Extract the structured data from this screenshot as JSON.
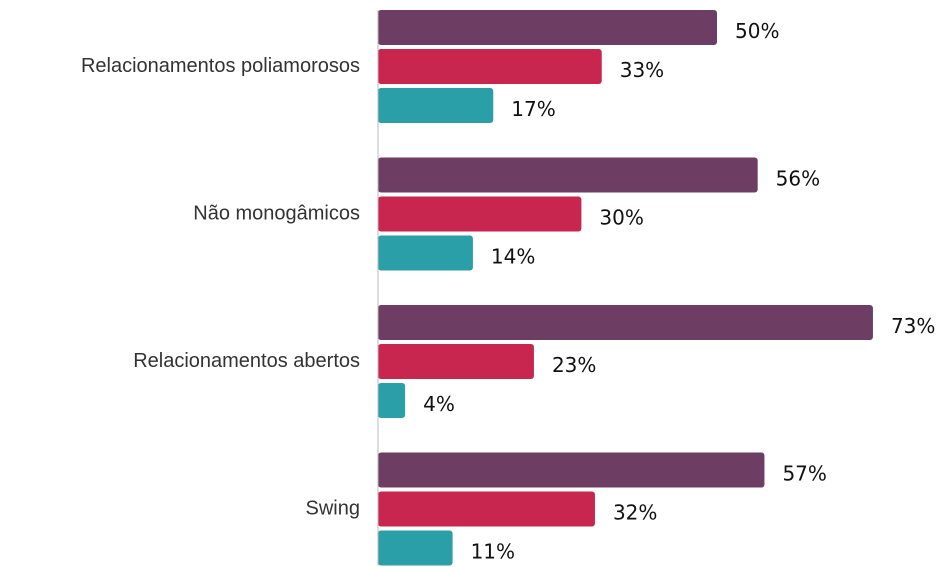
{
  "chart_data": {
    "type": "bar",
    "orientation": "horizontal",
    "categories": [
      "Relacionamentos poliamorosos",
      "Não monogâmicos",
      "Relacionamentos abertos",
      "Swing"
    ],
    "series": [
      {
        "color": "#6e3d63",
        "values": [
          50,
          56,
          73,
          57
        ],
        "value_labels": [
          "50%",
          "56%",
          "73%",
          "57%"
        ]
      },
      {
        "color": "#c8264f",
        "values": [
          33,
          30,
          23,
          32
        ],
        "value_labels": [
          "33%",
          "30%",
          "23%",
          "32%"
        ]
      },
      {
        "color": "#2a9fa8",
        "values": [
          17,
          14,
          4,
          11
        ],
        "value_labels": [
          "17%",
          "14%",
          "4%",
          "11%"
        ]
      }
    ]
  }
}
